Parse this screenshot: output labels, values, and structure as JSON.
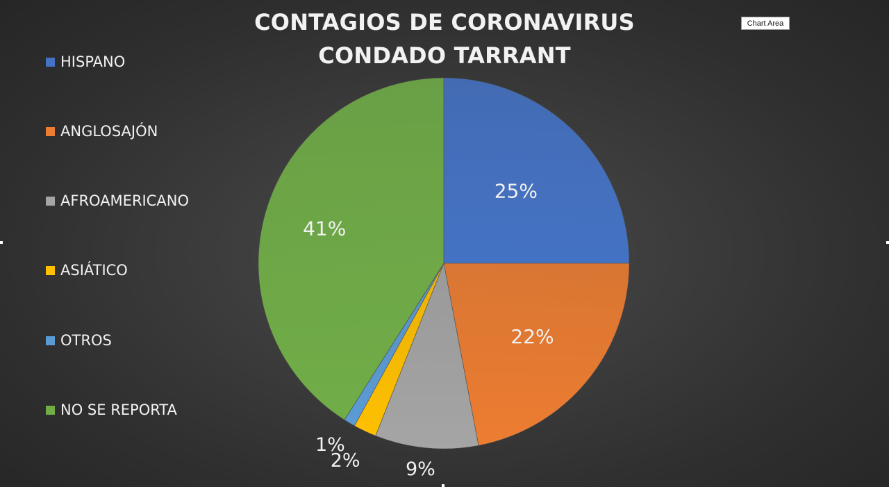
{
  "chart_data": {
    "type": "pie",
    "title": [
      "CONTAGIOS DE CORONAVIRUS",
      "CONDADO TARRANT"
    ],
    "categories": [
      "HISPANO",
      "ANGLOSAJÓN",
      "AFROAMERICANO",
      "ASIÁTICO",
      "OTROS",
      "NO SE REPORTA"
    ],
    "values": [
      25,
      22,
      9,
      2,
      1,
      41
    ],
    "data_labels": [
      "25%",
      "22%",
      "9%",
      "2%",
      "1%",
      "41%"
    ],
    "colors": [
      "#4472c4",
      "#ed7d31",
      "#a5a5a5",
      "#ffc000",
      "#5b9bd5",
      "#70ad47"
    ],
    "legend": "left",
    "start_angle": "12 o'clock, clockwise"
  },
  "tooltip": {
    "label": "Chart Area"
  }
}
